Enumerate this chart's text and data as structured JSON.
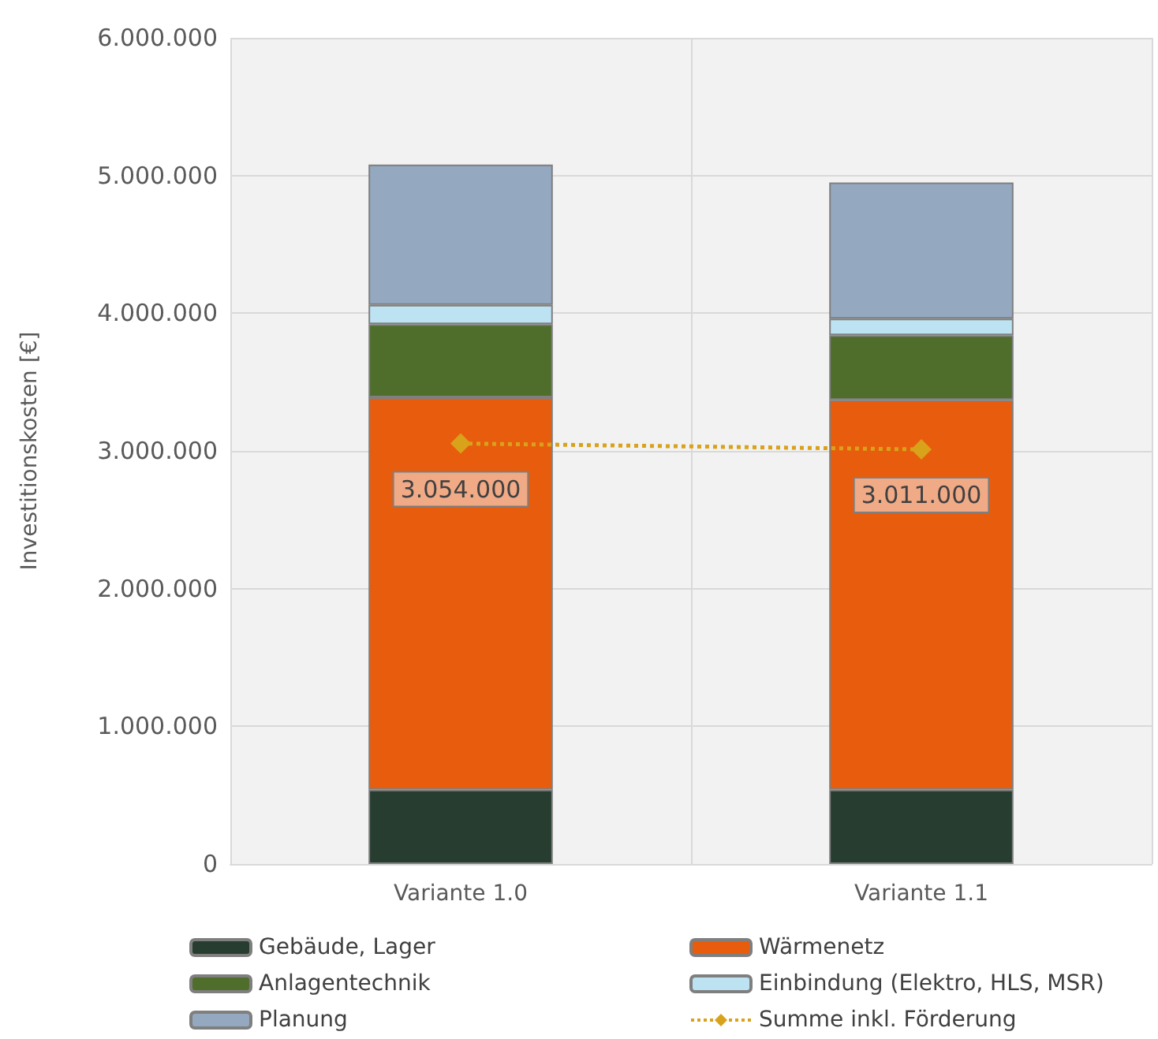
{
  "chart_data": {
    "type": "bar",
    "stacked": true,
    "ylabel": "Investitionskosten [€]",
    "categories": [
      "Variante 1.0",
      "Variante 1.1"
    ],
    "series": [
      {
        "name": "Gebäude, Lager",
        "color": "#263d30",
        "values": [
          540000,
          540000
        ]
      },
      {
        "name": "Wärmenetz",
        "color": "#e85c0d",
        "values": [
          2850000,
          2830000
        ]
      },
      {
        "name": "Anlagentechnik",
        "color": "#4f6e2b",
        "values": [
          530000,
          470000
        ]
      },
      {
        "name": "Einbindung (Elektro, HLS, MSR)",
        "color": "#bde3f2",
        "values": [
          140000,
          120000
        ]
      },
      {
        "name": "Planung",
        "color": "#94a8c0",
        "values": [
          1020000,
          990000
        ]
      },
      {
        "name": "Summe inkl. Förderung",
        "type": "line",
        "color": "#d9a21b",
        "marker": "diamond",
        "line_style": "dotted",
        "values": [
          3054000,
          3011000
        ],
        "value_labels": [
          "3.054.000",
          "3.011.000"
        ]
      }
    ],
    "ylim": [
      0,
      6000000
    ],
    "yticks": [
      0,
      {
        "value": 1000000,
        "label": "1.000.000"
      },
      {
        "value": 2000000,
        "label": "2.000.000"
      },
      {
        "value": 3000000,
        "label": "3.000.000"
      },
      {
        "value": 4000000,
        "label": "4.000.000"
      },
      {
        "value": 5000000,
        "label": "5.000.000"
      },
      {
        "value": 6000000,
        "label": "6.000.000"
      }
    ],
    "grid": true,
    "legend": "bottom"
  }
}
